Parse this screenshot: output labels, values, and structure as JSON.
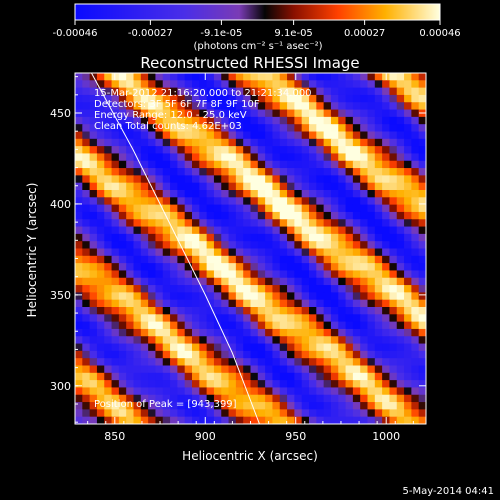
{
  "chart_data": {
    "type": "heatmap",
    "title": "Reconstructed RHESSI Image",
    "xlabel": "Heliocentric X (arcsec)",
    "ylabel": "Heliocentric Y (arcsec)",
    "xlim": [
      828,
      1022
    ],
    "ylim": [
      279,
      472
    ],
    "x_ticks": [
      "850",
      "900",
      "950",
      "1000"
    ],
    "y_ticks": [
      "300",
      "350",
      "400",
      "450"
    ],
    "colorbar": {
      "min": -0.00046,
      "max": 0.00046,
      "tick_labels": [
        "-0.00046",
        "-0.00027",
        "-9.1e-05",
        "9.1e-05",
        "0.00027",
        "0.00046"
      ],
      "units_label": "(photons cm⁻² s⁻¹ asec⁻²)"
    },
    "annotations": [
      "15-Mar-2012 21:16:20.000 to 21:21:34.000",
      "Detectors: 3F 5F 6F 7F 8F 9F 10F",
      "Energy Range: 12.0 - 25.0 keV",
      "Clean   Total counts: 4.62E+03"
    ],
    "peak_label": "Position of Peak = [943,399]",
    "peak": [
      943,
      399
    ],
    "stripes": {
      "direction": "diagonal, descending toward lower-right",
      "approx_period_arcsec": 48,
      "bright_band_passes_through": [
        943,
        399
      ]
    },
    "limb_arc": [
      [
        836,
        474
      ],
      [
        860,
        430
      ],
      [
        880,
        390
      ],
      [
        900,
        350
      ],
      [
        915,
        318
      ],
      [
        930,
        279
      ]
    ],
    "plot_date": "5-May-2014 04:41"
  }
}
